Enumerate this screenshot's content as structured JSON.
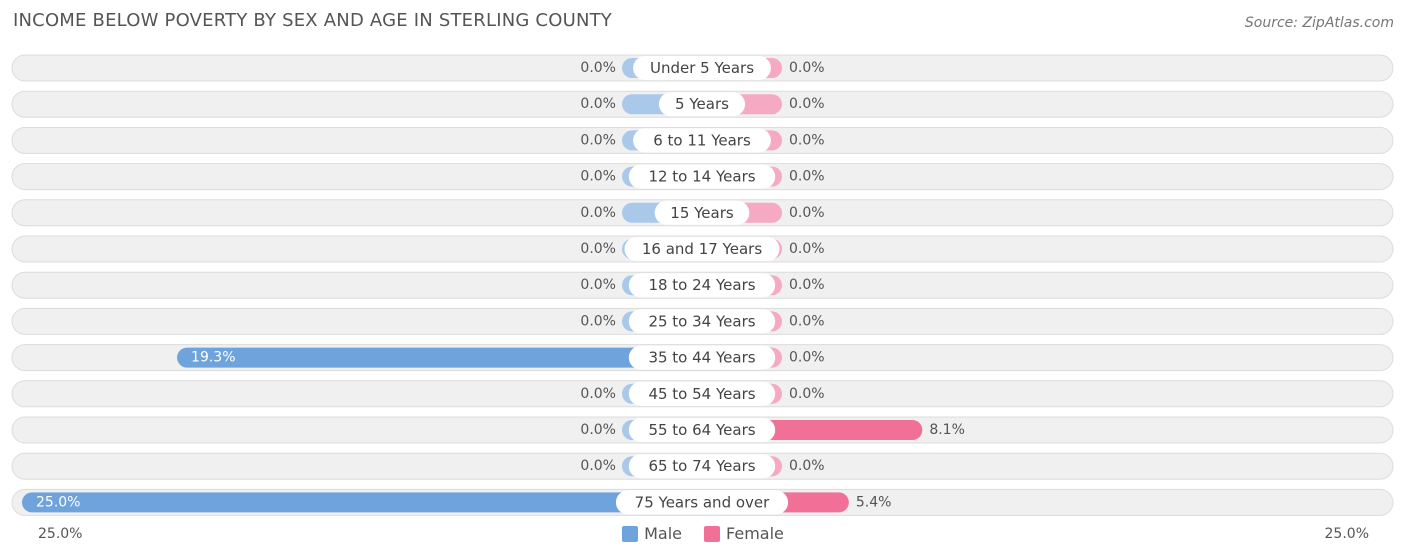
{
  "title": "INCOME BELOW POVERTY BY SEX AND AGE IN STERLING COUNTY",
  "source": "Source: ZipAtlas.com",
  "colors": {
    "male": "#6fa3dc",
    "male_light": "#aac8ea",
    "female": "#f07098",
    "female_light": "#f5a9c2",
    "row_bg": "#f0f0f0",
    "row_border": "#dcdcdc"
  },
  "axis": {
    "left_label": "25.0%",
    "right_label": "25.0%"
  },
  "legend": {
    "male_label": "Male",
    "female_label": "Female"
  },
  "chart_data": {
    "type": "bar",
    "orientation": "horizontal-diverging",
    "xlim": [
      -25,
      25
    ],
    "categories": [
      "Under 5 Years",
      "5 Years",
      "6 to 11 Years",
      "12 to 14 Years",
      "15 Years",
      "16 and 17 Years",
      "18 to 24 Years",
      "25 to 34 Years",
      "35 to 44 Years",
      "45 to 54 Years",
      "55 to 64 Years",
      "65 to 74 Years",
      "75 Years and over"
    ],
    "series": [
      {
        "name": "Male",
        "values": [
          0.0,
          0.0,
          0.0,
          0.0,
          0.0,
          0.0,
          0.0,
          0.0,
          19.3,
          0.0,
          0.0,
          0.0,
          25.0
        ],
        "labels": [
          "0.0%",
          "0.0%",
          "0.0%",
          "0.0%",
          "0.0%",
          "0.0%",
          "0.0%",
          "0.0%",
          "19.3%",
          "0.0%",
          "0.0%",
          "0.0%",
          "25.0%"
        ]
      },
      {
        "name": "Female",
        "values": [
          0.0,
          0.0,
          0.0,
          0.0,
          0.0,
          0.0,
          0.0,
          0.0,
          0.0,
          0.0,
          8.1,
          0.0,
          5.4
        ],
        "labels": [
          "0.0%",
          "0.0%",
          "0.0%",
          "0.0%",
          "0.0%",
          "0.0%",
          "0.0%",
          "0.0%",
          "0.0%",
          "0.0%",
          "8.1%",
          "0.0%",
          "5.4%"
        ]
      }
    ]
  }
}
